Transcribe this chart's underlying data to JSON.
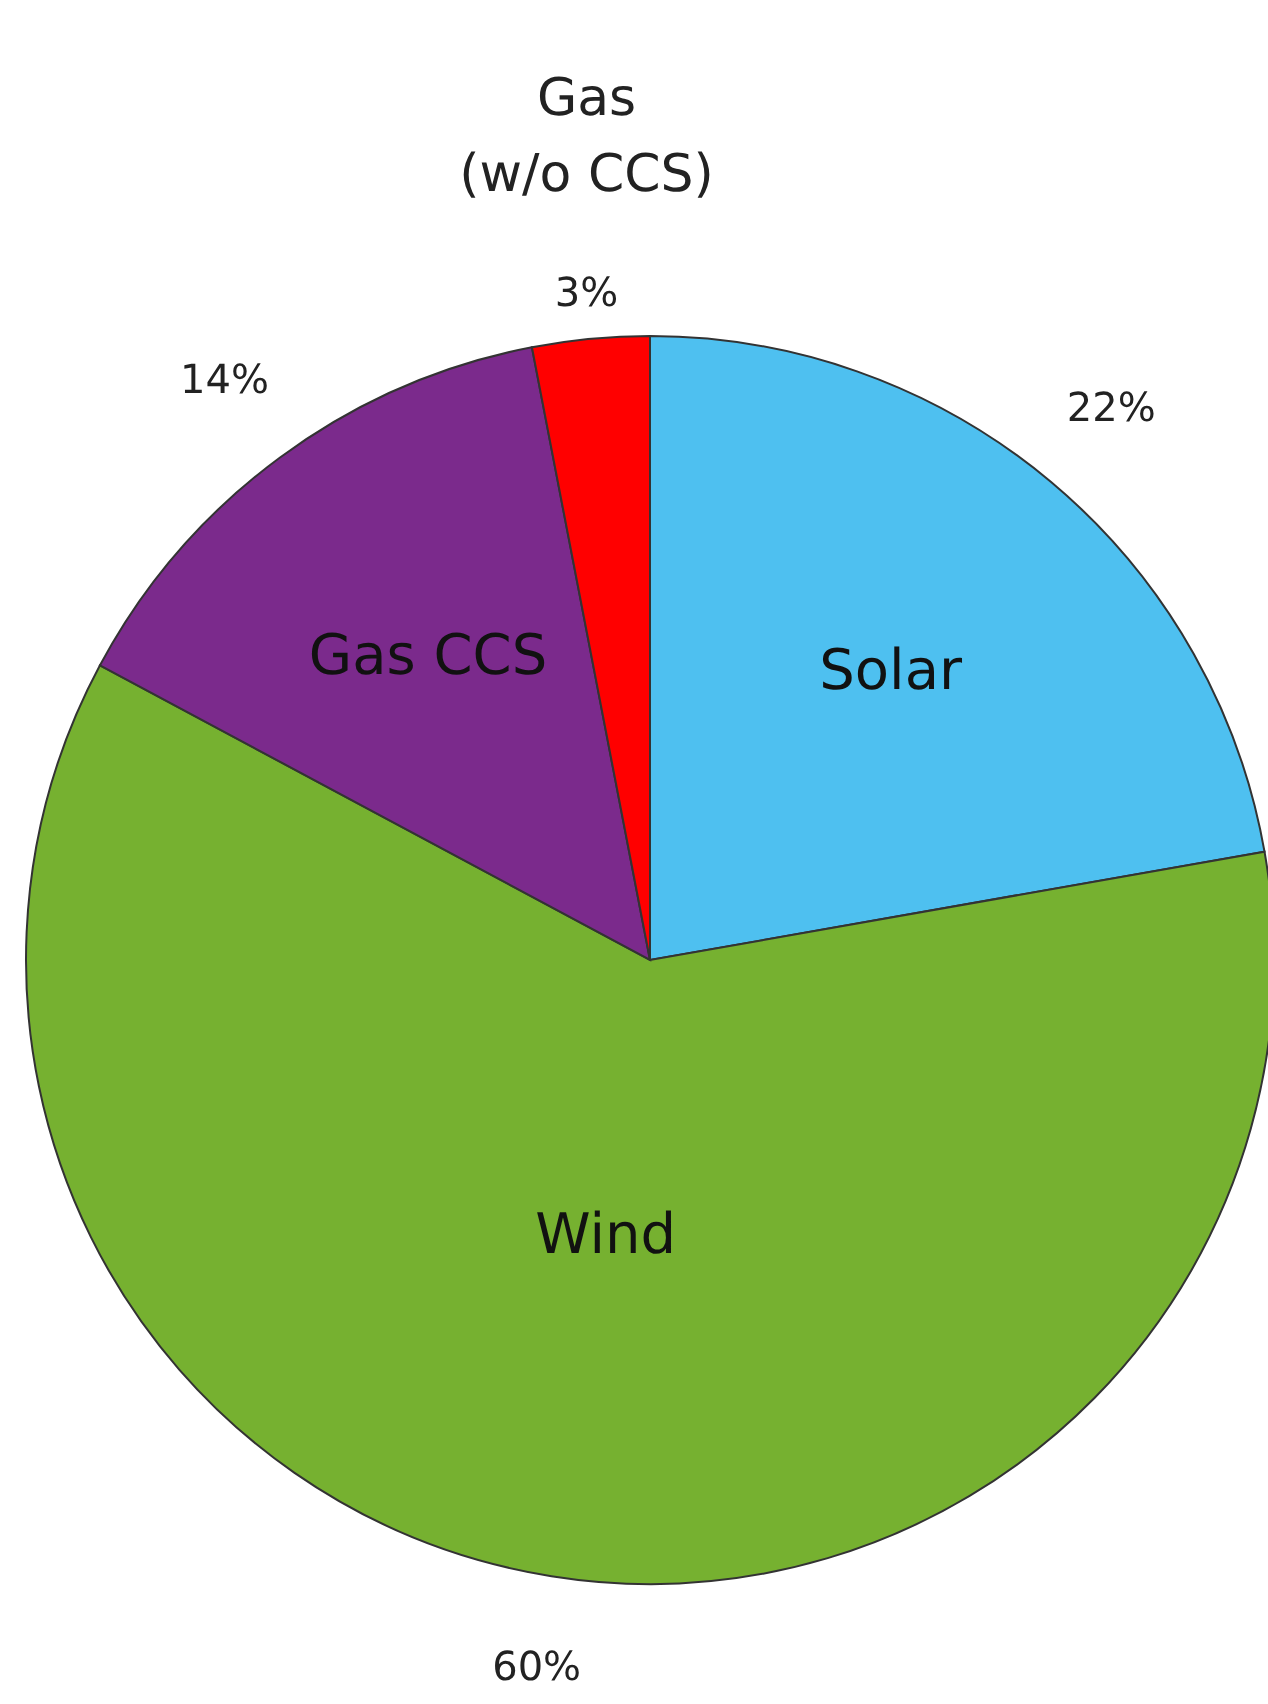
{
  "chart_data": {
    "type": "pie",
    "categories": [
      "Solar",
      "Wind",
      "Gas CCS",
      "Gas (w/o CCS)"
    ],
    "values": [
      22,
      60,
      14,
      3
    ],
    "colors": [
      "#4ec0f0",
      "#76b130",
      "#7b2a8c",
      "#ff0000"
    ],
    "value_labels": [
      "22%",
      "60%",
      "14%",
      "3%"
    ]
  }
}
